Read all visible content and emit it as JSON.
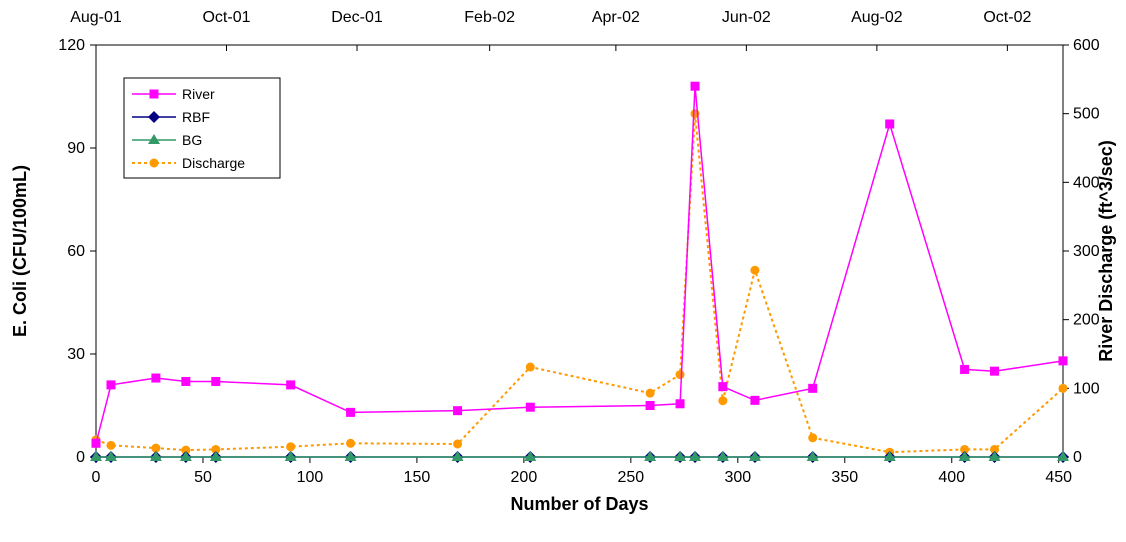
{
  "chart_data": {
    "type": "line",
    "xlabel": "Number of Days",
    "ylabel": "E. Coli (CFU/100mL)",
    "y2label": "River Discharge (ft^3/sec)",
    "xlim": [
      0,
      452
    ],
    "ylim": [
      0,
      120
    ],
    "y2lim": [
      0,
      600
    ],
    "x_ticks": [
      0,
      50,
      100,
      150,
      200,
      250,
      300,
      350,
      400,
      450
    ],
    "y_ticks": [
      0,
      30,
      60,
      90,
      120
    ],
    "y2_ticks": [
      0,
      100,
      200,
      300,
      400,
      500,
      600
    ],
    "top_axis_labels": [
      {
        "label": "Aug-01",
        "x": 0
      },
      {
        "label": "Oct-01",
        "x": 61
      },
      {
        "label": "Dec-01",
        "x": 122
      },
      {
        "label": "Feb-02",
        "x": 184
      },
      {
        "label": "Apr-02",
        "x": 243
      },
      {
        "label": "Jun-02",
        "x": 304
      },
      {
        "label": "Aug-02",
        "x": 365
      },
      {
        "label": "Oct-02",
        "x": 426
      }
    ],
    "grid": false,
    "legend_position": "top-left",
    "series": [
      {
        "name": "River",
        "axis": "left",
        "color": "#ff00ff",
        "marker": "square",
        "line": "solid",
        "x": [
          0,
          7,
          28,
          42,
          56,
          91,
          119,
          169,
          203,
          259,
          273,
          280,
          293,
          308,
          335,
          371,
          406,
          420,
          452
        ],
        "y": [
          4,
          21,
          23,
          22,
          22,
          21,
          13,
          13.5,
          14.5,
          15,
          15.5,
          108,
          20.5,
          16.5,
          20,
          97,
          25.5,
          25,
          28
        ]
      },
      {
        "name": "RBF",
        "axis": "left",
        "color": "#000080",
        "marker": "diamond",
        "line": "solid",
        "x": [
          0,
          7,
          28,
          42,
          56,
          91,
          119,
          169,
          203,
          259,
          273,
          280,
          293,
          308,
          335,
          371,
          406,
          420,
          452
        ],
        "y": [
          0,
          0,
          0,
          0,
          0,
          0,
          0,
          0,
          0,
          0,
          0,
          0,
          0,
          0,
          0,
          0,
          0,
          0,
          0
        ]
      },
      {
        "name": "BG",
        "axis": "left",
        "color": "#339966",
        "marker": "triangle",
        "line": "solid",
        "x": [
          0,
          7,
          28,
          42,
          56,
          91,
          119,
          169,
          203,
          259,
          273,
          280,
          293,
          308,
          335,
          371,
          406,
          420,
          452
        ],
        "y": [
          0,
          0,
          0,
          0,
          0,
          0,
          0,
          0,
          0,
          0,
          0,
          0,
          0,
          0,
          0,
          0,
          0,
          0,
          0
        ]
      },
      {
        "name": "Discharge",
        "axis": "right",
        "color": "#ff9900",
        "marker": "circle",
        "line": "dotted",
        "x": [
          0,
          7,
          28,
          42,
          56,
          91,
          119,
          169,
          203,
          259,
          273,
          280,
          293,
          308,
          335,
          371,
          406,
          420,
          452
        ],
        "y": [
          25,
          17,
          13,
          10,
          11,
          15,
          20,
          19,
          131,
          93,
          120,
          500,
          82,
          272,
          28,
          7,
          11,
          11,
          100
        ]
      }
    ]
  }
}
